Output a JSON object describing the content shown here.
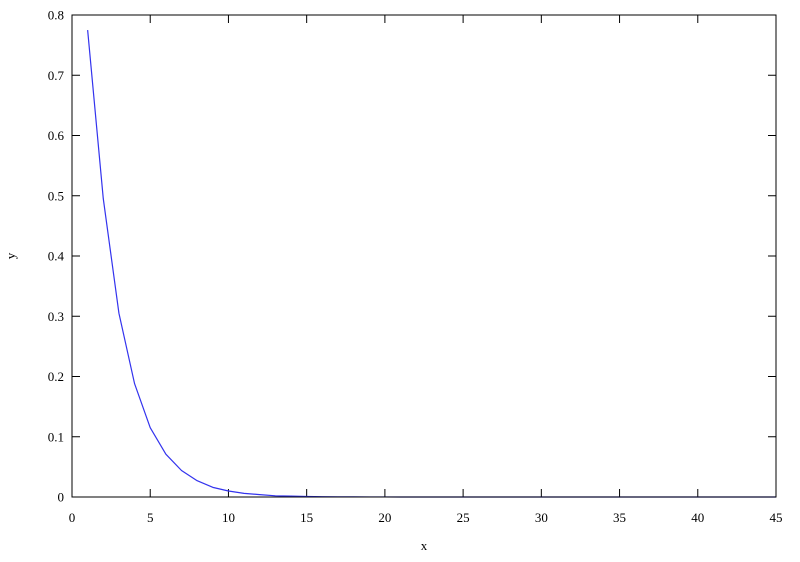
{
  "chart_data": {
    "type": "line",
    "title": "",
    "xlabel": "x",
    "ylabel": "y",
    "xlim": [
      0,
      45
    ],
    "ylim": [
      0,
      0.8
    ],
    "x_ticks": [
      0,
      5,
      10,
      15,
      20,
      25,
      30,
      35,
      40,
      45
    ],
    "y_ticks": [
      0,
      0.1,
      0.2,
      0.3,
      0.4,
      0.5,
      0.6,
      0.7,
      0.8
    ],
    "x_tick_labels": [
      "0",
      "5",
      "10",
      "15",
      "20",
      "25",
      "30",
      "35",
      "40",
      "45"
    ],
    "y_tick_labels": [
      "0",
      "0.1",
      "0.2",
      "0.3",
      "0.4",
      "0.5",
      "0.6",
      "0.7",
      "0.8"
    ],
    "grid": false,
    "legend": "none",
    "series": [
      {
        "color": "#3333ee",
        "x": [
          1,
          2,
          3,
          4,
          5,
          6,
          7,
          8,
          9,
          10,
          11,
          12,
          13,
          14,
          15,
          16,
          17,
          18,
          19,
          20,
          21,
          22,
          23,
          24,
          25,
          26,
          27,
          28,
          29,
          30,
          31,
          32,
          33,
          34,
          35,
          36,
          37,
          38,
          39,
          40,
          41,
          42,
          43,
          44,
          45
        ],
        "y": [
          0.775,
          0.495,
          0.305,
          0.188,
          0.115,
          0.071,
          0.044,
          0.027,
          0.016,
          0.01,
          0.006,
          0.004,
          0.002,
          0.0014,
          0.0009,
          0.0005,
          0.0003,
          0.0002,
          0.0001,
          0.0001,
          0,
          0,
          0,
          0,
          0,
          0,
          0,
          0,
          0,
          0,
          0,
          0,
          0,
          0,
          0,
          0,
          0,
          0,
          0,
          0,
          0,
          0,
          0,
          0,
          0
        ]
      }
    ]
  }
}
